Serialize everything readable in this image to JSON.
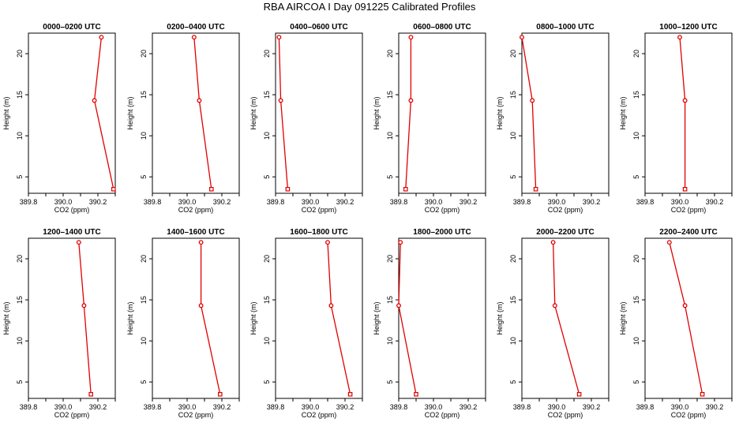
{
  "title": "RBA AIRCOA I  Day 091225  Calibrated Profiles",
  "colors": {
    "series": "#e00000",
    "axes": "#000000"
  },
  "chart_data": {
    "type": "line",
    "layout": "2x6 panel grid",
    "xlabel": "CO2 (ppm)",
    "ylabel": "Height (m)",
    "xlim": [
      389.8,
      390.3
    ],
    "ylim": [
      3,
      22.5
    ],
    "x_ticks": [
      389.8,
      390.0,
      390.2
    ],
    "x_tick_labels": [
      "389.8",
      "390.0",
      "390.2"
    ],
    "y_ticks": [
      5,
      10,
      15,
      20
    ],
    "y_tick_labels": [
      "5",
      "10",
      "15",
      "20"
    ],
    "heights": [
      22,
      14.3,
      3.5
    ],
    "panels": [
      {
        "title": "0000–0200 UTC",
        "co2": [
          390.22,
          390.18,
          390.29
        ]
      },
      {
        "title": "0200–0400 UTC",
        "co2": [
          390.04,
          390.07,
          390.14
        ]
      },
      {
        "title": "0400–0600 UTC",
        "co2": [
          389.82,
          389.83,
          389.87
        ]
      },
      {
        "title": "0600–0800 UTC",
        "co2": [
          389.87,
          389.87,
          389.84
        ]
      },
      {
        "title": "0800–1000 UTC",
        "co2": [
          389.8,
          389.86,
          389.88
        ]
      },
      {
        "title": "1000–1200 UTC",
        "co2": [
          390.0,
          390.03,
          390.03
        ]
      },
      {
        "title": "1200–1400 UTC",
        "co2": [
          390.09,
          390.12,
          390.16
        ]
      },
      {
        "title": "1400–1600 UTC",
        "co2": [
          390.08,
          390.08,
          390.19
        ]
      },
      {
        "title": "1600–1800 UTC",
        "co2": [
          390.1,
          390.12,
          390.23
        ]
      },
      {
        "title": "1800–2000 UTC",
        "co2": [
          389.81,
          389.8,
          389.9
        ]
      },
      {
        "title": "2000–2200 UTC",
        "co2": [
          389.98,
          389.99,
          390.13
        ]
      },
      {
        "title": "2200–2400 UTC",
        "co2": [
          389.94,
          390.03,
          390.13
        ]
      }
    ]
  }
}
